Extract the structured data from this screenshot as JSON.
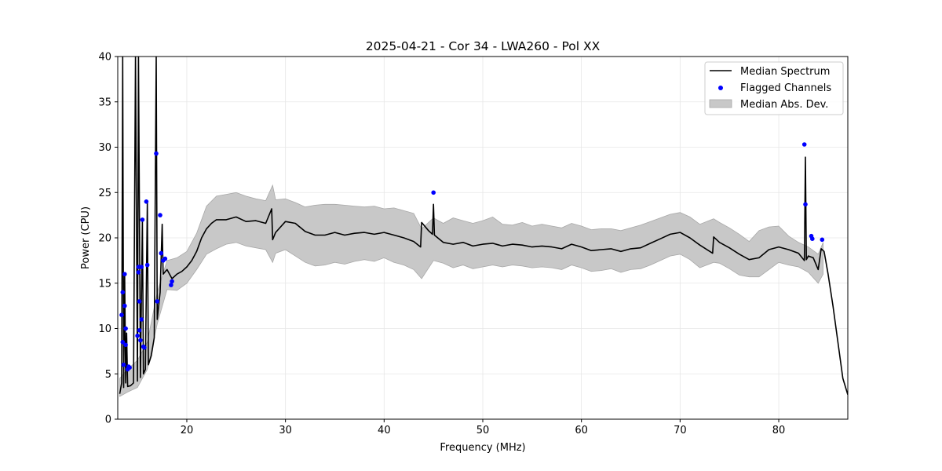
{
  "chart_data": {
    "type": "line",
    "title": "2025-04-21 - Cor 34 - LWA260 - Pol XX",
    "xlabel": "Frequency (MHz)",
    "ylabel": "Power (CPU)",
    "xlim": [
      13,
      87
    ],
    "ylim": [
      0,
      40
    ],
    "xticks": [
      20,
      30,
      40,
      50,
      60,
      70,
      80
    ],
    "yticks": [
      0,
      5,
      10,
      15,
      20,
      25,
      30,
      35,
      40
    ],
    "grid": true,
    "legend_position": "top-right",
    "legend": [
      {
        "label": "Median Spectrum",
        "kind": "line",
        "color": "#000000"
      },
      {
        "label": "Flagged Channels",
        "kind": "marker",
        "color": "#0000ff"
      },
      {
        "label": "Median Abs. Dev.",
        "kind": "band",
        "color": "#c8c8c8"
      }
    ],
    "series": [
      {
        "name": "Median Spectrum",
        "kind": "line",
        "color": "#000000",
        "points": [
          [
            13.2,
            2.8
          ],
          [
            13.4,
            4.0
          ],
          [
            13.5,
            40.0
          ],
          [
            13.6,
            3.5
          ],
          [
            13.7,
            16.0
          ],
          [
            13.8,
            4.0
          ],
          [
            13.9,
            9.5
          ],
          [
            14.0,
            3.6
          ],
          [
            14.3,
            3.7
          ],
          [
            14.6,
            4.0
          ],
          [
            14.8,
            40.0
          ],
          [
            15.0,
            4.2
          ],
          [
            15.1,
            40.0
          ],
          [
            15.3,
            4.6
          ],
          [
            15.5,
            22.0
          ],
          [
            15.6,
            5.0
          ],
          [
            15.8,
            5.5
          ],
          [
            16.0,
            24.0
          ],
          [
            16.1,
            6.0
          ],
          [
            16.4,
            7.0
          ],
          [
            16.7,
            9.0
          ],
          [
            16.9,
            40.0
          ],
          [
            17.0,
            11.0
          ],
          [
            17.3,
            14.0
          ],
          [
            17.5,
            21.5
          ],
          [
            17.6,
            16.0
          ],
          [
            18.0,
            16.5
          ],
          [
            18.5,
            15.5
          ],
          [
            19.0,
            16.0
          ],
          [
            19.5,
            16.3
          ],
          [
            20.0,
            16.8
          ],
          [
            20.5,
            17.5
          ],
          [
            21.0,
            18.5
          ],
          [
            21.5,
            20.0
          ],
          [
            22.0,
            21.0
          ],
          [
            22.5,
            21.6
          ],
          [
            23.0,
            22.0
          ],
          [
            24.0,
            22.0
          ],
          [
            25.0,
            22.3
          ],
          [
            26.0,
            21.8
          ],
          [
            27.0,
            21.9
          ],
          [
            28.0,
            21.6
          ],
          [
            28.6,
            23.2
          ],
          [
            28.7,
            19.8
          ],
          [
            29.0,
            20.6
          ],
          [
            30.0,
            21.8
          ],
          [
            31.0,
            21.6
          ],
          [
            32.0,
            20.7
          ],
          [
            33.0,
            20.3
          ],
          [
            34.0,
            20.3
          ],
          [
            35.0,
            20.6
          ],
          [
            36.0,
            20.3
          ],
          [
            37.0,
            20.5
          ],
          [
            38.0,
            20.6
          ],
          [
            39.0,
            20.4
          ],
          [
            40.0,
            20.6
          ],
          [
            41.0,
            20.3
          ],
          [
            42.0,
            20.0
          ],
          [
            43.0,
            19.6
          ],
          [
            43.7,
            19.0
          ],
          [
            43.8,
            21.7
          ],
          [
            44.5,
            20.8
          ],
          [
            44.9,
            20.4
          ],
          [
            45.0,
            23.7
          ],
          [
            45.1,
            20.3
          ],
          [
            46.0,
            19.5
          ],
          [
            47.0,
            19.3
          ],
          [
            48.0,
            19.5
          ],
          [
            49.0,
            19.1
          ],
          [
            50.0,
            19.3
          ],
          [
            51.0,
            19.4
          ],
          [
            52.0,
            19.1
          ],
          [
            53.0,
            19.3
          ],
          [
            54.0,
            19.2
          ],
          [
            55.0,
            19.0
          ],
          [
            56.0,
            19.1
          ],
          [
            57.0,
            19.0
          ],
          [
            58.0,
            18.8
          ],
          [
            59.0,
            19.3
          ],
          [
            60.0,
            19.0
          ],
          [
            61.0,
            18.6
          ],
          [
            62.0,
            18.7
          ],
          [
            63.0,
            18.8
          ],
          [
            64.0,
            18.5
          ],
          [
            65.0,
            18.8
          ],
          [
            66.0,
            18.9
          ],
          [
            67.0,
            19.4
          ],
          [
            68.0,
            19.9
          ],
          [
            69.0,
            20.4
          ],
          [
            70.0,
            20.6
          ],
          [
            71.0,
            20.0
          ],
          [
            72.0,
            19.2
          ],
          [
            73.3,
            18.3
          ],
          [
            73.4,
            20.1
          ],
          [
            74.0,
            19.5
          ],
          [
            75.0,
            18.9
          ],
          [
            76.0,
            18.2
          ],
          [
            77.0,
            17.6
          ],
          [
            78.0,
            17.8
          ],
          [
            79.0,
            18.7
          ],
          [
            80.0,
            19.0
          ],
          [
            81.0,
            18.7
          ],
          [
            82.0,
            18.3
          ],
          [
            82.6,
            17.5
          ],
          [
            82.7,
            28.9
          ],
          [
            82.8,
            17.6
          ],
          [
            83.0,
            18.0
          ],
          [
            83.5,
            17.8
          ],
          [
            84.0,
            16.5
          ],
          [
            84.3,
            18.8
          ],
          [
            84.6,
            18.5
          ],
          [
            85.0,
            16.0
          ],
          [
            85.5,
            12.5
          ],
          [
            86.0,
            8.5
          ],
          [
            86.5,
            4.5
          ],
          [
            87.0,
            2.7
          ]
        ]
      },
      {
        "name": "Median Abs. Dev.",
        "kind": "band",
        "color": "#c8c8c8",
        "upper": [
          [
            13.2,
            4.5
          ],
          [
            14.0,
            5.5
          ],
          [
            15.0,
            6.5
          ],
          [
            16.0,
            8.5
          ],
          [
            17.0,
            14.0
          ],
          [
            18.0,
            17.5
          ],
          [
            19.0,
            17.8
          ],
          [
            20.0,
            18.5
          ],
          [
            21.0,
            20.5
          ],
          [
            22.0,
            23.5
          ],
          [
            23.0,
            24.6
          ],
          [
            24.0,
            24.8
          ],
          [
            25.0,
            25.0
          ],
          [
            26.0,
            24.6
          ],
          [
            27.0,
            24.3
          ],
          [
            28.0,
            24.1
          ],
          [
            28.7,
            25.8
          ],
          [
            29.0,
            24.2
          ],
          [
            30.0,
            24.3
          ],
          [
            31.0,
            23.9
          ],
          [
            32.0,
            23.4
          ],
          [
            33.0,
            23.6
          ],
          [
            34.0,
            23.7
          ],
          [
            35.0,
            23.7
          ],
          [
            36.0,
            23.6
          ],
          [
            37.0,
            23.5
          ],
          [
            38.0,
            23.4
          ],
          [
            39.0,
            23.5
          ],
          [
            40.0,
            23.2
          ],
          [
            41.0,
            23.3
          ],
          [
            42.0,
            23.0
          ],
          [
            43.0,
            22.7
          ],
          [
            43.8,
            21.0
          ],
          [
            45.0,
            22.2
          ],
          [
            46.0,
            21.6
          ],
          [
            47.0,
            22.2
          ],
          [
            48.0,
            21.9
          ],
          [
            49.0,
            21.6
          ],
          [
            50.0,
            21.9
          ],
          [
            51.0,
            22.3
          ],
          [
            52.0,
            21.5
          ],
          [
            53.0,
            21.4
          ],
          [
            54.0,
            21.7
          ],
          [
            55.0,
            21.3
          ],
          [
            56.0,
            21.5
          ],
          [
            57.0,
            21.3
          ],
          [
            58.0,
            21.1
          ],
          [
            59.0,
            21.6
          ],
          [
            60.0,
            21.3
          ],
          [
            61.0,
            20.9
          ],
          [
            62.0,
            21.0
          ],
          [
            63.0,
            21.0
          ],
          [
            64.0,
            20.8
          ],
          [
            65.0,
            21.1
          ],
          [
            66.0,
            21.4
          ],
          [
            67.0,
            21.8
          ],
          [
            68.0,
            22.2
          ],
          [
            69.0,
            22.6
          ],
          [
            70.0,
            22.8
          ],
          [
            71.0,
            22.3
          ],
          [
            72.0,
            21.5
          ],
          [
            73.4,
            22.1
          ],
          [
            74.0,
            21.7
          ],
          [
            75.0,
            21.1
          ],
          [
            76.0,
            20.4
          ],
          [
            77.0,
            19.6
          ],
          [
            78.0,
            20.8
          ],
          [
            79.0,
            21.2
          ],
          [
            80.0,
            21.3
          ],
          [
            81.0,
            20.2
          ],
          [
            82.0,
            19.5
          ],
          [
            83.0,
            19.0
          ],
          [
            84.0,
            18.2
          ],
          [
            84.5,
            19.5
          ]
        ],
        "lower": [
          [
            84.5,
            16.0
          ],
          [
            84.0,
            15.0
          ],
          [
            83.0,
            16.2
          ],
          [
            82.0,
            16.8
          ],
          [
            81.0,
            17.0
          ],
          [
            80.0,
            17.3
          ],
          [
            79.0,
            16.5
          ],
          [
            78.0,
            15.7
          ],
          [
            77.0,
            15.7
          ],
          [
            76.0,
            15.9
          ],
          [
            75.0,
            16.6
          ],
          [
            74.0,
            17.2
          ],
          [
            73.4,
            17.3
          ],
          [
            72.0,
            16.7
          ],
          [
            71.0,
            17.6
          ],
          [
            70.0,
            18.2
          ],
          [
            69.0,
            18.0
          ],
          [
            68.0,
            17.5
          ],
          [
            67.0,
            17.0
          ],
          [
            66.0,
            16.6
          ],
          [
            65.0,
            16.5
          ],
          [
            64.0,
            16.2
          ],
          [
            63.0,
            16.6
          ],
          [
            62.0,
            16.4
          ],
          [
            61.0,
            16.3
          ],
          [
            60.0,
            16.7
          ],
          [
            59.0,
            17.0
          ],
          [
            58.0,
            16.5
          ],
          [
            57.0,
            16.7
          ],
          [
            56.0,
            16.8
          ],
          [
            55.0,
            16.7
          ],
          [
            54.0,
            16.9
          ],
          [
            53.0,
            17.0
          ],
          [
            52.0,
            16.8
          ],
          [
            51.0,
            17.0
          ],
          [
            50.0,
            16.8
          ],
          [
            49.0,
            16.6
          ],
          [
            48.0,
            17.0
          ],
          [
            47.0,
            16.7
          ],
          [
            46.0,
            17.2
          ],
          [
            45.0,
            17.5
          ],
          [
            43.8,
            15.5
          ],
          [
            43.0,
            16.5
          ],
          [
            42.0,
            17.0
          ],
          [
            41.0,
            17.3
          ],
          [
            40.0,
            17.8
          ],
          [
            39.0,
            17.4
          ],
          [
            38.0,
            17.6
          ],
          [
            37.0,
            17.4
          ],
          [
            36.0,
            17.1
          ],
          [
            35.0,
            17.3
          ],
          [
            34.0,
            17.0
          ],
          [
            33.0,
            16.9
          ],
          [
            32.0,
            17.3
          ],
          [
            31.0,
            18.0
          ],
          [
            30.0,
            18.7
          ],
          [
            29.0,
            18.3
          ],
          [
            28.7,
            17.3
          ],
          [
            28.0,
            18.7
          ],
          [
            27.0,
            18.9
          ],
          [
            26.0,
            19.1
          ],
          [
            25.0,
            19.5
          ],
          [
            24.0,
            19.3
          ],
          [
            23.0,
            18.8
          ],
          [
            22.0,
            18.2
          ],
          [
            21.0,
            16.5
          ],
          [
            20.0,
            15.0
          ],
          [
            19.0,
            14.2
          ],
          [
            18.0,
            14.3
          ],
          [
            17.0,
            10.5
          ],
          [
            16.0,
            5.5
          ],
          [
            15.0,
            3.5
          ],
          [
            14.0,
            3.0
          ],
          [
            13.2,
            2.5
          ]
        ]
      },
      {
        "name": "Flagged Channels",
        "kind": "scatter",
        "color": "#0000ff",
        "points": [
          [
            13.4,
            11.5
          ],
          [
            13.5,
            14.0
          ],
          [
            13.5,
            8.5
          ],
          [
            13.6,
            6.0
          ],
          [
            13.7,
            16.0
          ],
          [
            13.7,
            12.5
          ],
          [
            13.8,
            8.2
          ],
          [
            13.8,
            10.0
          ],
          [
            14.0,
            5.5
          ],
          [
            14.1,
            5.8
          ],
          [
            14.2,
            5.7
          ],
          [
            15.0,
            9.2
          ],
          [
            15.1,
            16.8
          ],
          [
            15.1,
            16.2
          ],
          [
            15.2,
            9.8
          ],
          [
            15.2,
            13.0
          ],
          [
            15.3,
            8.7
          ],
          [
            15.4,
            11.0
          ],
          [
            15.4,
            16.8
          ],
          [
            15.5,
            22.0
          ],
          [
            15.6,
            8.0
          ],
          [
            15.7,
            7.9
          ],
          [
            15.9,
            24.0
          ],
          [
            16.0,
            17.0
          ],
          [
            16.9,
            29.3
          ],
          [
            17.0,
            13.0
          ],
          [
            17.3,
            22.5
          ],
          [
            17.4,
            18.3
          ],
          [
            17.6,
            17.5
          ],
          [
            17.8,
            17.7
          ],
          [
            18.4,
            14.8
          ],
          [
            18.5,
            15.2
          ],
          [
            45.0,
            25.0
          ],
          [
            82.6,
            30.3
          ],
          [
            82.7,
            23.7
          ],
          [
            83.3,
            20.2
          ],
          [
            83.4,
            19.9
          ],
          [
            84.4,
            19.8
          ]
        ]
      }
    ]
  }
}
